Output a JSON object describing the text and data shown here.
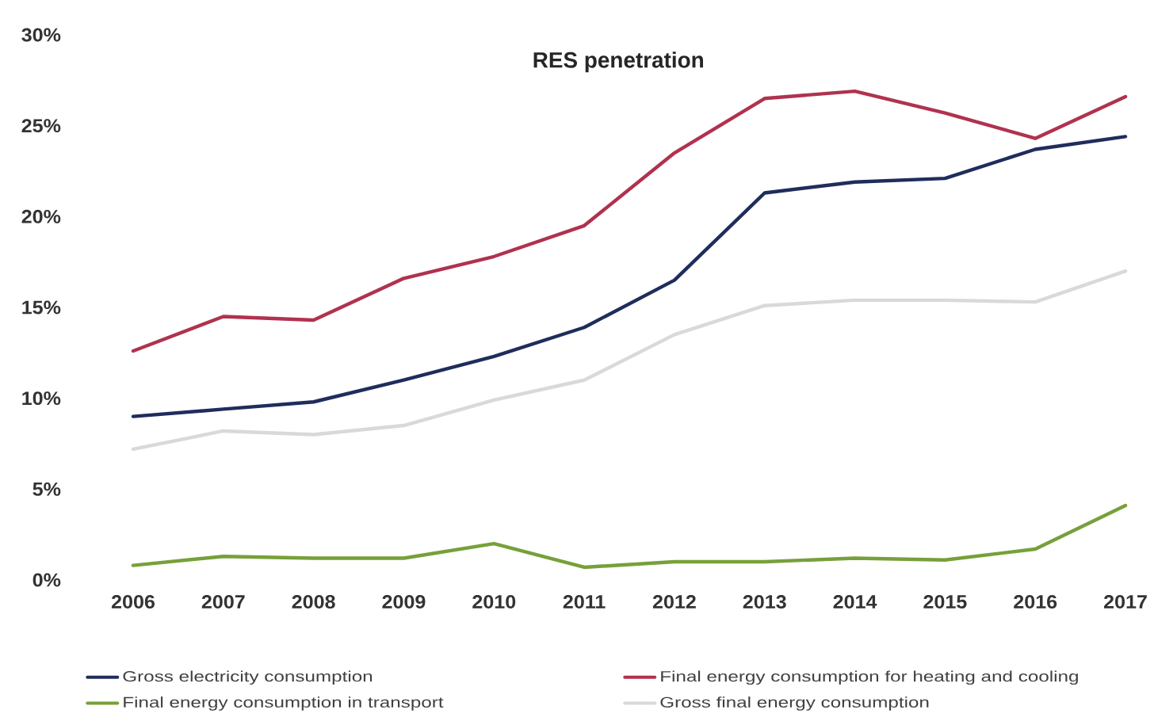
{
  "chart_data": {
    "type": "line",
    "title": "RES penetration",
    "categories": [
      "2006",
      "2007",
      "2008",
      "2009",
      "2010",
      "2011",
      "2012",
      "2013",
      "2014",
      "2015",
      "2016",
      "2017"
    ],
    "series": [
      {
        "name": "Gross electricity consumption",
        "color": "#1f2d5c",
        "values": [
          9.0,
          9.4,
          9.8,
          11.0,
          12.3,
          13.9,
          16.5,
          21.3,
          21.9,
          22.1,
          23.7,
          24.4
        ]
      },
      {
        "name": "Final energy consumption for heating and cooling",
        "color": "#b0324f",
        "values": [
          12.6,
          14.5,
          14.3,
          16.6,
          17.8,
          19.5,
          23.5,
          26.5,
          26.9,
          25.7,
          24.3,
          26.6
        ]
      },
      {
        "name": "Final energy consumption in transport",
        "color": "#77a03a",
        "values": [
          0.8,
          1.3,
          1.2,
          1.2,
          2.0,
          0.7,
          1.0,
          1.0,
          1.2,
          1.1,
          1.7,
          4.1
        ]
      },
      {
        "name": "Gross final energy consumption",
        "color": "#d9d9d9",
        "values": [
          7.2,
          8.2,
          8.0,
          8.5,
          9.9,
          11.0,
          13.5,
          15.1,
          15.4,
          15.4,
          15.3,
          17.0
        ]
      }
    ],
    "ylim": [
      0,
      30
    ],
    "yticks": [
      {
        "value": 0,
        "label": "0%"
      },
      {
        "value": 5,
        "label": "5%"
      },
      {
        "value": 10,
        "label": "10%"
      },
      {
        "value": 15,
        "label": "15%"
      },
      {
        "value": 20,
        "label": "20%"
      },
      {
        "value": 25,
        "label": "25%"
      },
      {
        "value": 30,
        "label": "30%"
      }
    ],
    "legend": "bottom"
  }
}
